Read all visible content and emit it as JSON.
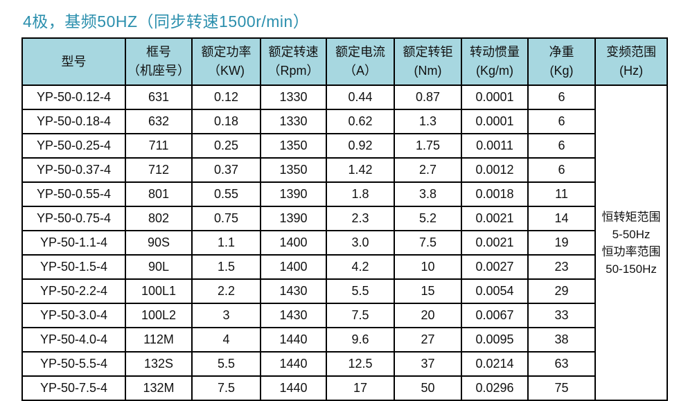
{
  "title": "4极，基频50HZ（同步转速1500r/min）",
  "colors": {
    "title_text": "#2b8fad",
    "header_bg": "#a7d7e0",
    "border": "#000000",
    "row_bg": "#ffffff"
  },
  "table": {
    "headers": [
      {
        "line1": "型号",
        "line2": ""
      },
      {
        "line1": "框号",
        "line2": "（机座号）"
      },
      {
        "line1": "额定功率",
        "line2": "（KW)"
      },
      {
        "line1": "额定转速",
        "line2": "（Rpm）"
      },
      {
        "line1": "额定电流",
        "line2": "（A）"
      },
      {
        "line1": "额定转钜",
        "line2": "(Nm)"
      },
      {
        "line1": "转动惯量",
        "line2": "(Kg/m)"
      },
      {
        "line1": "净重",
        "line2": "(Kg)"
      },
      {
        "line1": "变频范围",
        "line2": "(Hz)"
      }
    ],
    "rows": [
      [
        "YP-50-0.12-4",
        "631",
        "0.12",
        "1330",
        "0.44",
        "0.87",
        "0.0001",
        "6"
      ],
      [
        "YP-50-0.18-4",
        "632",
        "0.18",
        "1330",
        "0.62",
        "1.3",
        "0.0001",
        "6"
      ],
      [
        "YP-50-0.25-4",
        "711",
        "0.25",
        "1350",
        "0.92",
        "1.75",
        "0.0011",
        "6"
      ],
      [
        "YP-50-0.37-4",
        "712",
        "0.37",
        "1350",
        "1.42",
        "2.7",
        "0.0012",
        "6"
      ],
      [
        "YP-50-0.55-4",
        "801",
        "0.55",
        "1390",
        "1.8",
        "3.8",
        "0.0018",
        "11"
      ],
      [
        "YP-50-0.75-4",
        "802",
        "0.75",
        "1390",
        "2.3",
        "5.2",
        "0.0021",
        "14"
      ],
      [
        "YP-50-1.1-4",
        "90S",
        "1.1",
        "1400",
        "3.0",
        "7.5",
        "0.0021",
        "19"
      ],
      [
        "YP-50-1.5-4",
        "90L",
        "1.5",
        "1400",
        "4.2",
        "10",
        "0.0027",
        "23"
      ],
      [
        "YP-50-2.2-4",
        "100L1",
        "2.2",
        "1430",
        "5.5",
        "15",
        "0.0054",
        "29"
      ],
      [
        "YP-50-3.0-4",
        "100L2",
        "3",
        "1430",
        "7.5",
        "20",
        "0.0067",
        "33"
      ],
      [
        "YP-50-4.0-4",
        "112M",
        "4",
        "1440",
        "9.6",
        "27",
        "0.0095",
        "38"
      ],
      [
        "YP-50-5.5-4",
        "132S",
        "5.5",
        "1440",
        "12.5",
        "37",
        "0.0214",
        "63"
      ],
      [
        "YP-50-7.5-4",
        "132M",
        "7.5",
        "1440",
        "17",
        "50",
        "0.0296",
        "75"
      ]
    ],
    "frequency_note_lines": [
      "恒转矩范围",
      "5-50Hz",
      "恒功率范围",
      "50-150Hz"
    ]
  }
}
